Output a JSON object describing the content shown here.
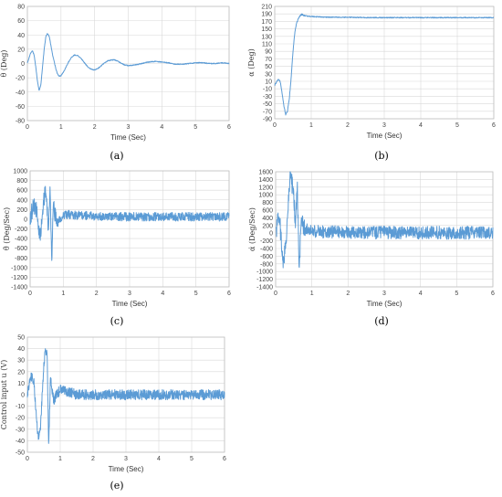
{
  "chart_data": [
    {
      "id": "a",
      "caption": "(a)",
      "type": "line",
      "xlabel": "Time (Sec)",
      "ylabel": "θ (Deg)",
      "xlim": [
        0,
        6
      ],
      "ylim": [
        -80,
        80
      ],
      "xticks": [
        0,
        1,
        2,
        3,
        4,
        5,
        6
      ],
      "yticks": [
        -80,
        -60,
        -40,
        -20,
        0,
        20,
        40,
        60,
        80
      ],
      "grid": true,
      "color": "#5b9bd5",
      "series": [
        {
          "x": [
            0,
            0.05,
            0.1,
            0.15,
            0.2,
            0.25,
            0.3,
            0.35,
            0.4,
            0.45,
            0.5,
            0.55,
            0.6,
            0.65,
            0.7,
            0.75,
            0.8,
            0.85,
            0.9,
            0.95,
            1.0,
            1.1,
            1.2,
            1.3,
            1.4,
            1.5,
            1.6,
            1.7,
            1.8,
            1.9,
            2.0,
            2.1,
            2.2,
            2.3,
            2.4,
            2.5,
            2.6,
            2.7,
            2.8,
            2.9,
            3.0,
            3.2,
            3.4,
            3.6,
            3.8,
            4.0,
            4.2,
            4.4,
            4.6,
            4.8,
            5.0,
            5.2,
            5.4,
            5.6,
            5.8,
            6.0
          ],
          "y": [
            0,
            8,
            15,
            18,
            12,
            -5,
            -25,
            -38,
            -30,
            -5,
            20,
            38,
            42,
            38,
            25,
            12,
            2,
            -8,
            -15,
            -18,
            -17,
            -10,
            0,
            8,
            12,
            11,
            7,
            1,
            -5,
            -8,
            -9,
            -7,
            -3,
            1,
            4,
            5,
            5,
            3,
            0,
            -2,
            -3,
            -2,
            0,
            2,
            3,
            2,
            1,
            -1,
            -1,
            0,
            1,
            1,
            0,
            0,
            1,
            0
          ]
        }
      ]
    },
    {
      "id": "b",
      "caption": "(b)",
      "type": "line",
      "xlabel": "Time (Sec)",
      "ylabel": "α (Deg)",
      "xlim": [
        0,
        6
      ],
      "ylim": [
        -90,
        210
      ],
      "xticks": [
        0,
        1,
        2,
        3,
        4,
        5,
        6
      ],
      "yticks": [
        -90,
        -70,
        -50,
        -30,
        -10,
        10,
        30,
        50,
        70,
        90,
        110,
        130,
        150,
        170,
        190,
        210
      ],
      "grid": true,
      "color": "#5b9bd5",
      "series": [
        {
          "x": [
            0,
            0.05,
            0.1,
            0.15,
            0.2,
            0.25,
            0.3,
            0.35,
            0.4,
            0.45,
            0.5,
            0.55,
            0.6,
            0.65,
            0.7,
            0.75,
            0.8,
            0.9,
            1.0,
            1.2,
            1.5,
            2.0,
            2.5,
            3.0,
            4.0,
            5.0,
            6.0
          ],
          "y": [
            0,
            8,
            15,
            10,
            -20,
            -55,
            -78,
            -70,
            -35,
            20,
            90,
            140,
            165,
            178,
            186,
            189,
            186,
            184,
            183,
            182,
            181,
            181,
            180,
            180,
            180,
            180,
            180
          ]
        }
      ]
    },
    {
      "id": "c",
      "caption": "(c)",
      "type": "line",
      "xlabel": "Time (Sec)",
      "ylabel": "θ̇ (Deg/Sec)",
      "xlim": [
        0,
        6
      ],
      "ylim": [
        -1400,
        1000
      ],
      "xticks": [
        0,
        1,
        2,
        3,
        4,
        5,
        6
      ],
      "yticks": [
        -1400,
        -1200,
        -1000,
        -800,
        -600,
        -400,
        -200,
        0,
        200,
        400,
        600,
        800,
        1000
      ],
      "grid": true,
      "color": "#5b9bd5",
      "series": [
        {
          "x": [
            0,
            0.1,
            0.2,
            0.3,
            0.4,
            0.45,
            0.5,
            0.55,
            0.6,
            0.65,
            0.7,
            0.8,
            1.0,
            1.5,
            2.0,
            3.0,
            4.0,
            5.0,
            6.0
          ],
          "y": [
            0,
            300,
            150,
            -400,
            350,
            550,
            400,
            -300,
            650,
            -900,
            300,
            -100,
            100,
            80,
            60,
            50,
            50,
            50,
            50
          ]
        }
      ]
    },
    {
      "id": "d",
      "caption": "(d)",
      "type": "line",
      "xlabel": "Time (Sec)",
      "ylabel": "α̇ (Deg/Sec)",
      "xlim": [
        0,
        6
      ],
      "ylim": [
        -1400,
        1600
      ],
      "xticks": [
        0,
        1,
        2,
        3,
        4,
        5,
        6
      ],
      "yticks": [
        -1400,
        -1200,
        -1000,
        -800,
        -600,
        -400,
        -200,
        0,
        200,
        400,
        600,
        800,
        1000,
        1200,
        1400,
        1600
      ],
      "grid": true,
      "color": "#5b9bd5",
      "series": [
        {
          "x": [
            0,
            0.1,
            0.2,
            0.3,
            0.4,
            0.5,
            0.55,
            0.6,
            0.65,
            0.7,
            0.8,
            1.0,
            1.5,
            2.0,
            3.0,
            4.0,
            5.0,
            6.0
          ],
          "y": [
            0,
            500,
            -800,
            -200,
            1600,
            1000,
            200,
            1300,
            -1200,
            400,
            100,
            50,
            30,
            20,
            10,
            10,
            10,
            10
          ]
        }
      ]
    },
    {
      "id": "e",
      "caption": "(e)",
      "type": "line",
      "xlabel": "Time (Sec)",
      "ylabel": "Control input u (V)",
      "xlim": [
        0,
        6
      ],
      "ylim": [
        -50,
        50
      ],
      "xticks": [
        0,
        1,
        2,
        3,
        4,
        5,
        6
      ],
      "yticks": [
        -50,
        -40,
        -30,
        -20,
        -10,
        0,
        10,
        20,
        30,
        40,
        50
      ],
      "grid": true,
      "color": "#5b9bd5",
      "series": [
        {
          "x": [
            0,
            0.05,
            0.1,
            0.15,
            0.2,
            0.25,
            0.3,
            0.35,
            0.4,
            0.45,
            0.5,
            0.55,
            0.6,
            0.65,
            0.7,
            0.8,
            1.0,
            1.5,
            2.0,
            3.0,
            4.0,
            5.0,
            6.0
          ],
          "y": [
            0,
            8,
            15,
            16,
            10,
            -10,
            -30,
            -38,
            -28,
            0,
            25,
            40,
            35,
            -45,
            15,
            -5,
            5,
            0,
            0,
            0,
            0,
            0,
            0
          ]
        }
      ]
    }
  ]
}
